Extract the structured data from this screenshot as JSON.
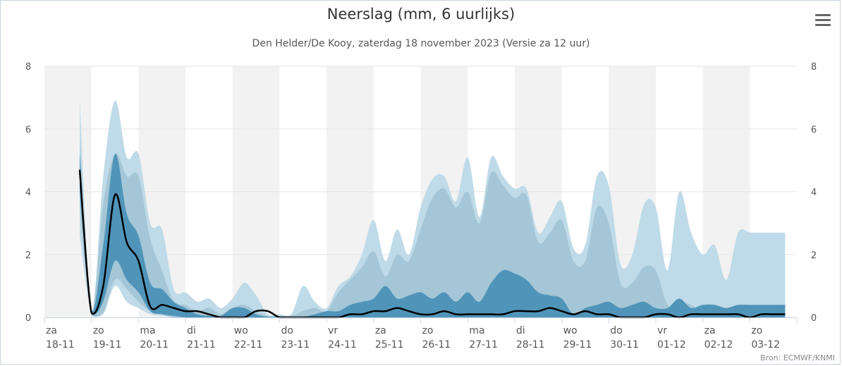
{
  "title": "Neerslag (mm, 6 uurlijks)",
  "subtitle": "Den Helder/De Kooy, zaterdag 18 november 2023 (Versie za 12 uur)",
  "source": "Bron: ECMWF/KNMI",
  "colors": {
    "band_outer": "#bfdae8",
    "band_mid": "#a5c6d6",
    "band_inner": "#5095b9",
    "median": "#000000",
    "stripe": "#f2f2f2",
    "grid": "#e6e6e6"
  },
  "chart_data": {
    "type": "area",
    "title": "Neerslag (mm, 6 uurlijks)",
    "subtitle": "Den Helder/De Kooy, zaterdag 18 november 2023 (Versie za 12 uur)",
    "ylim": [
      0,
      8
    ],
    "yticks": [
      0,
      2,
      4,
      6,
      8
    ],
    "y_axis_right": true,
    "grid": true,
    "x_unit": "6-hour steps from za 18-11 00:00",
    "categories": [
      [
        "za",
        "18-11"
      ],
      [
        "zo",
        "19-11"
      ],
      [
        "ma",
        "20-11"
      ],
      [
        "di",
        "21-11"
      ],
      [
        "wo",
        "22-11"
      ],
      [
        "do",
        "23-11"
      ],
      [
        "vr",
        "24-11"
      ],
      [
        "za",
        "25-11"
      ],
      [
        "zo",
        "26-11"
      ],
      [
        "ma",
        "27-11"
      ],
      [
        "di",
        "28-11"
      ],
      [
        "wo",
        "29-11"
      ],
      [
        "do",
        "30-11"
      ],
      [
        "vr",
        "01-12"
      ],
      [
        "za",
        "02-12"
      ],
      [
        "zo",
        "03-12"
      ]
    ],
    "x": [
      3,
      4,
      5,
      6,
      7,
      8,
      9,
      10,
      11,
      12,
      13,
      14,
      15,
      16,
      17,
      18,
      19,
      20,
      21,
      22,
      23,
      24,
      25,
      26,
      27,
      28,
      29,
      30,
      31,
      32,
      33,
      34,
      35,
      36,
      37,
      38,
      39,
      40,
      41,
      42,
      43,
      44,
      45,
      46,
      47,
      48,
      49,
      50,
      51,
      52,
      53,
      54,
      55,
      56,
      57,
      58,
      59,
      60,
      61,
      62,
      63
    ],
    "series": [
      {
        "values_low": [
          2.6,
          0.05,
          0.1,
          1.0,
          0.5,
          0.3,
          0.1,
          0.05,
          0,
          0,
          0,
          0,
          0,
          0,
          0,
          0,
          0,
          0,
          0,
          0,
          0,
          0,
          0,
          0,
          0,
          0,
          0,
          0,
          0,
          0,
          0,
          0,
          0,
          0,
          0,
          0,
          0,
          0,
          0,
          0,
          0,
          0,
          0,
          0,
          0,
          0,
          0,
          0,
          0,
          0,
          0,
          0,
          0,
          0,
          0,
          0,
          0,
          0,
          0,
          0,
          0
        ],
        "values_high": [
          6.9,
          0.2,
          4.5,
          6.9,
          5.1,
          5.2,
          3.0,
          2.8,
          0.9,
          0.8,
          0.5,
          0.6,
          0.3,
          0.6,
          1.1,
          0.7,
          0.1,
          0.1,
          0.1,
          1.0,
          0.5,
          0.3,
          1.0,
          1.3,
          2.0,
          3.1,
          1.8,
          2.8,
          2.0,
          3.5,
          4.4,
          4.5,
          3.7,
          5.1,
          3.2,
          5.1,
          4.5,
          4.1,
          4.1,
          2.7,
          3.2,
          3.7,
          2.2,
          2.3,
          4.5,
          4.2,
          1.7,
          2.0,
          3.6,
          3.5,
          1.5,
          4.0,
          2.7,
          2.0,
          2.3,
          1.2,
          2.7,
          2.7,
          2.7,
          2.7,
          2.7
        ]
      },
      {
        "values_low": [
          3.5,
          0.05,
          0.15,
          1.2,
          0.9,
          0.5,
          0.2,
          0.1,
          0,
          0,
          0,
          0,
          0,
          0,
          0,
          0,
          0,
          0,
          0,
          0,
          0,
          0,
          0,
          0,
          0,
          0,
          0,
          0,
          0,
          0,
          0,
          0,
          0,
          0,
          0,
          0,
          0,
          0,
          0,
          0,
          0,
          0,
          0,
          0,
          0,
          0,
          0,
          0,
          0,
          0,
          0,
          0,
          0,
          0,
          0,
          0,
          0,
          0,
          0,
          0,
          0
        ],
        "values_high": [
          5.5,
          0.15,
          3.6,
          5.2,
          4.5,
          4.5,
          2.5,
          1.5,
          0.5,
          0.4,
          0.2,
          0.3,
          0.1,
          0.3,
          0.4,
          0.2,
          0.05,
          0.05,
          0.05,
          0.2,
          0.3,
          0.2,
          0.8,
          1.2,
          1.6,
          2.1,
          1.3,
          2.0,
          1.8,
          2.8,
          3.8,
          4.1,
          3.5,
          4.0,
          3.0,
          4.6,
          4.2,
          3.8,
          3.9,
          2.4,
          2.7,
          3.1,
          1.8,
          1.8,
          3.5,
          3.0,
          1.1,
          1.1,
          1.6,
          1.5,
          0.4,
          0.5,
          0.4,
          0.2,
          0.3,
          0.1,
          0.3,
          0.3,
          0.3,
          0.3,
          0.3
        ]
      },
      {
        "values_low": [
          4.0,
          0.1,
          0.5,
          1.8,
          1.2,
          0.8,
          0.2,
          0.1,
          0.05,
          0,
          0,
          0,
          0,
          0,
          0,
          0,
          0,
          0,
          0,
          0,
          0,
          0,
          0,
          0,
          0,
          0,
          0,
          0,
          0,
          0,
          0,
          0,
          0,
          0,
          0,
          0,
          0,
          0,
          0,
          0,
          0,
          0,
          0,
          0,
          0,
          0,
          0,
          0,
          0,
          0,
          0,
          0,
          0,
          0,
          0,
          0,
          0,
          0,
          0,
          0,
          0
        ],
        "values_high": [
          5.2,
          0.2,
          2.3,
          5.2,
          3.3,
          2.6,
          1.1,
          0.9,
          0.5,
          0.3,
          0.1,
          0.05,
          0.05,
          0.3,
          0.3,
          0.1,
          0.02,
          0.02,
          0.02,
          0.02,
          0.1,
          0.2,
          0.2,
          0.4,
          0.5,
          0.6,
          1.0,
          0.6,
          0.7,
          0.8,
          0.6,
          0.8,
          0.5,
          0.8,
          0.5,
          1.1,
          1.5,
          1.4,
          1.2,
          0.8,
          0.7,
          0.6,
          0.1,
          0.3,
          0.4,
          0.5,
          0.3,
          0.4,
          0.5,
          0.3,
          0.3,
          0.6,
          0.3,
          0.4,
          0.4,
          0.3,
          0.4,
          0.4,
          0.4,
          0.4,
          0.4
        ]
      },
      {
        "values": [
          4.7,
          0.15,
          1.0,
          3.9,
          2.4,
          1.8,
          0.35,
          0.4,
          0.3,
          0.2,
          0.2,
          0.1,
          0.0,
          0.0,
          0.0,
          0.2,
          0.2,
          0.0,
          0.0,
          0.0,
          0.0,
          0.0,
          0.0,
          0.1,
          0.1,
          0.2,
          0.2,
          0.3,
          0.2,
          0.1,
          0.1,
          0.2,
          0.1,
          0.1,
          0.1,
          0.1,
          0.1,
          0.2,
          0.2,
          0.2,
          0.3,
          0.2,
          0.1,
          0.2,
          0.1,
          0.1,
          0.0,
          0.0,
          0.0,
          0.1,
          0.1,
          0.0,
          0.1,
          0.1,
          0.1,
          0.1,
          0.1,
          0.0,
          0.1,
          0.1,
          0.1
        ]
      }
    ]
  }
}
